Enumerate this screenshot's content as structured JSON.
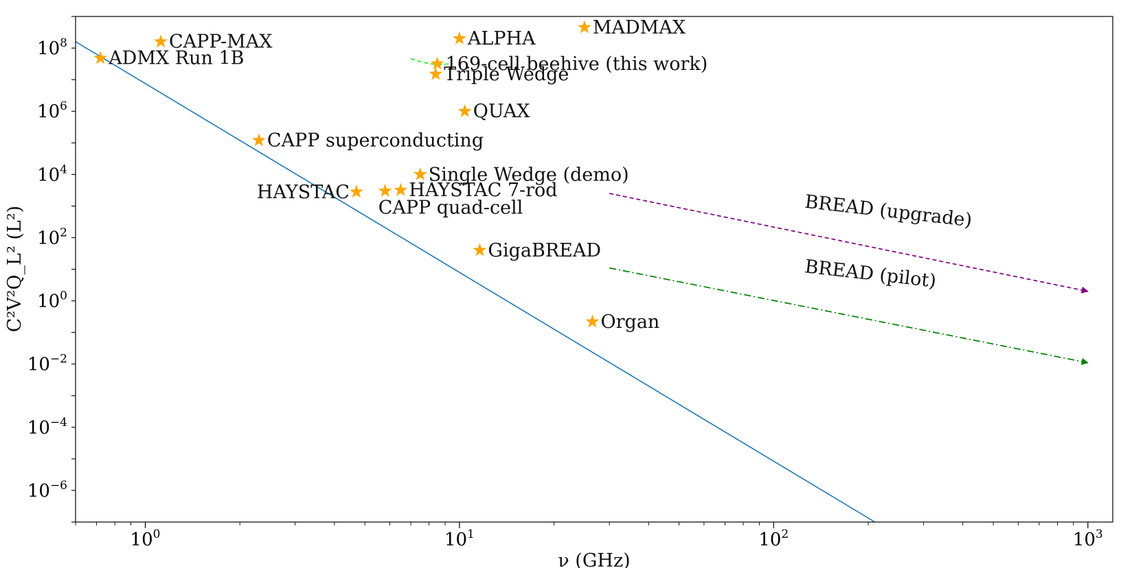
{
  "chart_data": {
    "type": "scatter",
    "title": "",
    "xlabel": "ν (GHz)",
    "ylabel": "C²V²Q_L² (L²)",
    "xscale": "log",
    "yscale": "log",
    "xlim": [
      0.6,
      1200
    ],
    "ylim": [
      1e-07,
      1000000000.0
    ],
    "x_ticks": [
      {
        "value": 1,
        "base": "10",
        "exp": "0"
      },
      {
        "value": 10,
        "base": "10",
        "exp": "1"
      },
      {
        "value": 100,
        "base": "10",
        "exp": "2"
      },
      {
        "value": 1000,
        "base": "10",
        "exp": "3"
      }
    ],
    "y_ticks": [
      {
        "value": 100000000.0,
        "base": "10",
        "exp": "8"
      },
      {
        "value": 1000000.0,
        "base": "10",
        "exp": "6"
      },
      {
        "value": 10000.0,
        "base": "10",
        "exp": "4"
      },
      {
        "value": 100.0,
        "base": "10",
        "exp": "2"
      },
      {
        "value": 1,
        "base": "10",
        "exp": "0"
      },
      {
        "value": 0.01,
        "base": "10",
        "exp": "−2"
      },
      {
        "value": 0.0001,
        "base": "10",
        "exp": "−4"
      },
      {
        "value": 1e-06,
        "base": "10",
        "exp": "−6"
      }
    ],
    "marker_color": "#ffa500",
    "points": [
      {
        "label": "CAPP-MAX",
        "x": 1.12,
        "y": 160000000.0,
        "label_side": "right"
      },
      {
        "label": "ADMX Run 1B",
        "x": 0.72,
        "y": 48000000.0,
        "label_side": "right"
      },
      {
        "label": "ALPHA",
        "x": 10.0,
        "y": 200000000.0,
        "label_side": "right"
      },
      {
        "label": "MADMAX",
        "x": 25.0,
        "y": 450000000.0,
        "label_side": "right"
      },
      {
        "label": "169-cell beehive (this work)",
        "x": 8.5,
        "y": 32000000.0,
        "label_side": "right"
      },
      {
        "label": "Triple Wedge",
        "x": 8.4,
        "y": 15000000.0,
        "label_side": "right"
      },
      {
        "label": "QUAX",
        "x": 10.4,
        "y": 1000000.0,
        "label_side": "right"
      },
      {
        "label": "CAPP superconducting",
        "x": 2.3,
        "y": 120000.0,
        "label_side": "right"
      },
      {
        "label": "Single Wedge (demo)",
        "x": 7.5,
        "y": 10000.0,
        "label_side": "right"
      },
      {
        "label": "HAYSTAC",
        "x": 4.7,
        "y": 2800.0,
        "label_side": "left"
      },
      {
        "label": "CAPP quad-cell",
        "x": 5.8,
        "y": 3000.0,
        "label_side": "below"
      },
      {
        "label": "HAYSTAC 7-rod",
        "x": 6.5,
        "y": 3200.0,
        "label_side": "right"
      },
      {
        "label": "GigaBREAD",
        "x": 11.6,
        "y": 40,
        "label_side": "right"
      },
      {
        "label": "Organ",
        "x": 26.5,
        "y": 0.22,
        "label_side": "right"
      }
    ],
    "series": [
      {
        "name": "sensitivity line",
        "style": "solid",
        "color": "#1f77b4",
        "x": [
          0.6,
          210
        ],
        "y": [
          160000000.0,
          1e-07
        ]
      },
      {
        "name": "169-cell beehive tuning range",
        "style": "dashed",
        "color": "#22ee22",
        "x": [
          7.0,
          7.6,
          8.2,
          8.8,
          9.3
        ],
        "y": [
          46000000.0,
          36000000.0,
          31000000.0,
          30000000.0,
          32000000.0
        ]
      },
      {
        "name": "BREAD (upgrade)",
        "style": "dashed",
        "color": "#800080",
        "arrow": true,
        "x": [
          30,
          1000
        ],
        "y": [
          2500.0,
          2.0
        ]
      },
      {
        "name": "BREAD (pilot)",
        "style": "dashdot",
        "color": "#008000",
        "arrow": true,
        "x": [
          30,
          1000
        ],
        "y": [
          11,
          0.011
        ]
      }
    ],
    "arrow_labels": [
      {
        "text": "BREAD (upgrade)",
        "x": 125,
        "y": 900,
        "rotate": 6.5
      },
      {
        "text": "BREAD (pilot)",
        "x": 125,
        "y": 8,
        "rotate": 6.5
      }
    ]
  }
}
